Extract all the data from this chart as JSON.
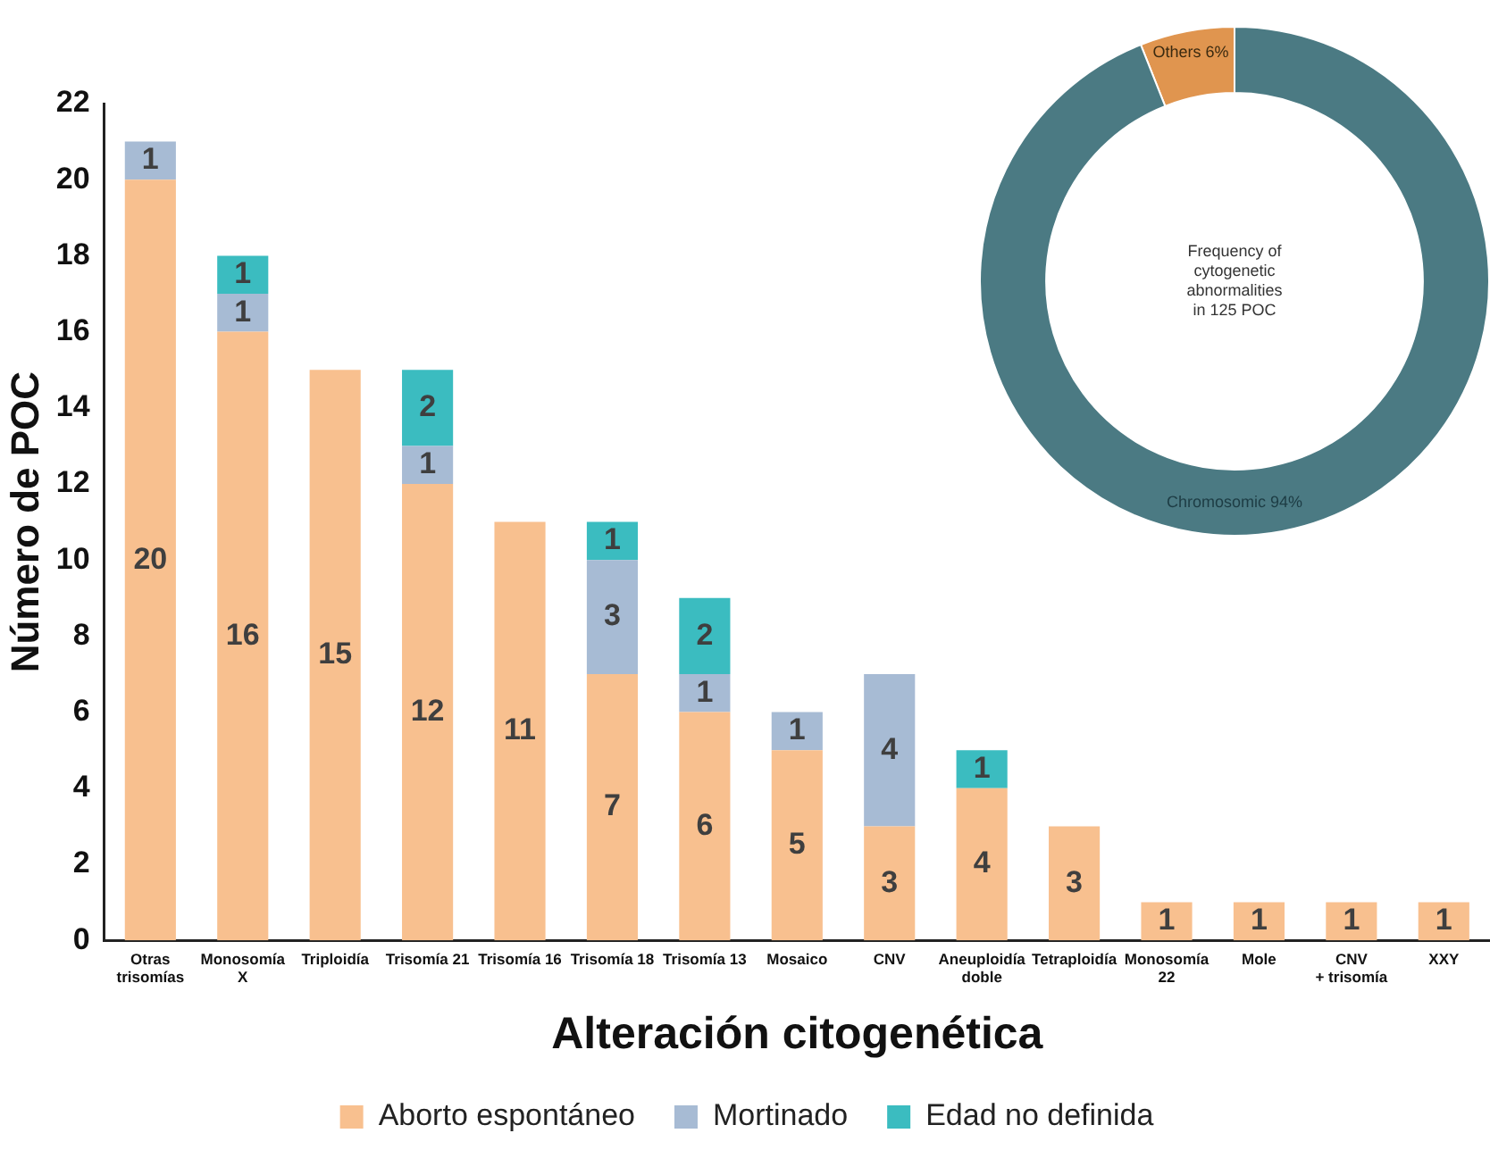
{
  "chart_data": [
    {
      "type": "bar",
      "stacked": true,
      "xlabel": "Alteración citogenética",
      "ylabel": "Número de POC",
      "categories": [
        "Otras\ntrisomías",
        "Monosomía\nX",
        "Triploidía",
        "Trisomía 21",
        "Trisomía 16",
        "Trisomía 18",
        "Trisomía 13",
        "Mosaico",
        "CNV",
        "Aneuploidía\ndoble",
        "Tetraploidía",
        "Monosomía\n22",
        "Mole",
        "CNV\n+ trisomía",
        "XXY"
      ],
      "series": [
        {
          "name": "Aborto espontáneo",
          "color": "#f8c08f",
          "values": [
            20,
            16,
            15,
            12,
            11,
            7,
            6,
            5,
            3,
            4,
            3,
            1,
            1,
            1,
            1
          ]
        },
        {
          "name": "Mortinado",
          "color": "#a7bbd4",
          "values": [
            1,
            1,
            null,
            1,
            null,
            3,
            1,
            1,
            4,
            null,
            null,
            null,
            null,
            null,
            null
          ]
        },
        {
          "name": "Edad no definida",
          "color": "#3bbcc0",
          "values": [
            null,
            1,
            null,
            2,
            null,
            1,
            2,
            null,
            null,
            1,
            null,
            null,
            null,
            null,
            null
          ]
        }
      ],
      "ylim": [
        0,
        22
      ],
      "yticks": [
        0,
        2,
        4,
        6,
        8,
        10,
        12,
        14,
        16,
        18,
        20,
        22
      ],
      "grid": false,
      "legend": "bottom",
      "data_labels": true
    },
    {
      "type": "donut",
      "title": "Frequency of cytogenetic abnormalities in 125 POC",
      "categories": [
        "Others",
        "Chromosomic"
      ],
      "values": [
        6,
        94
      ],
      "value_labels": [
        "6%",
        "94%"
      ],
      "colors": [
        "#e0954f",
        "#4b7a83"
      ],
      "legend": false
    }
  ]
}
